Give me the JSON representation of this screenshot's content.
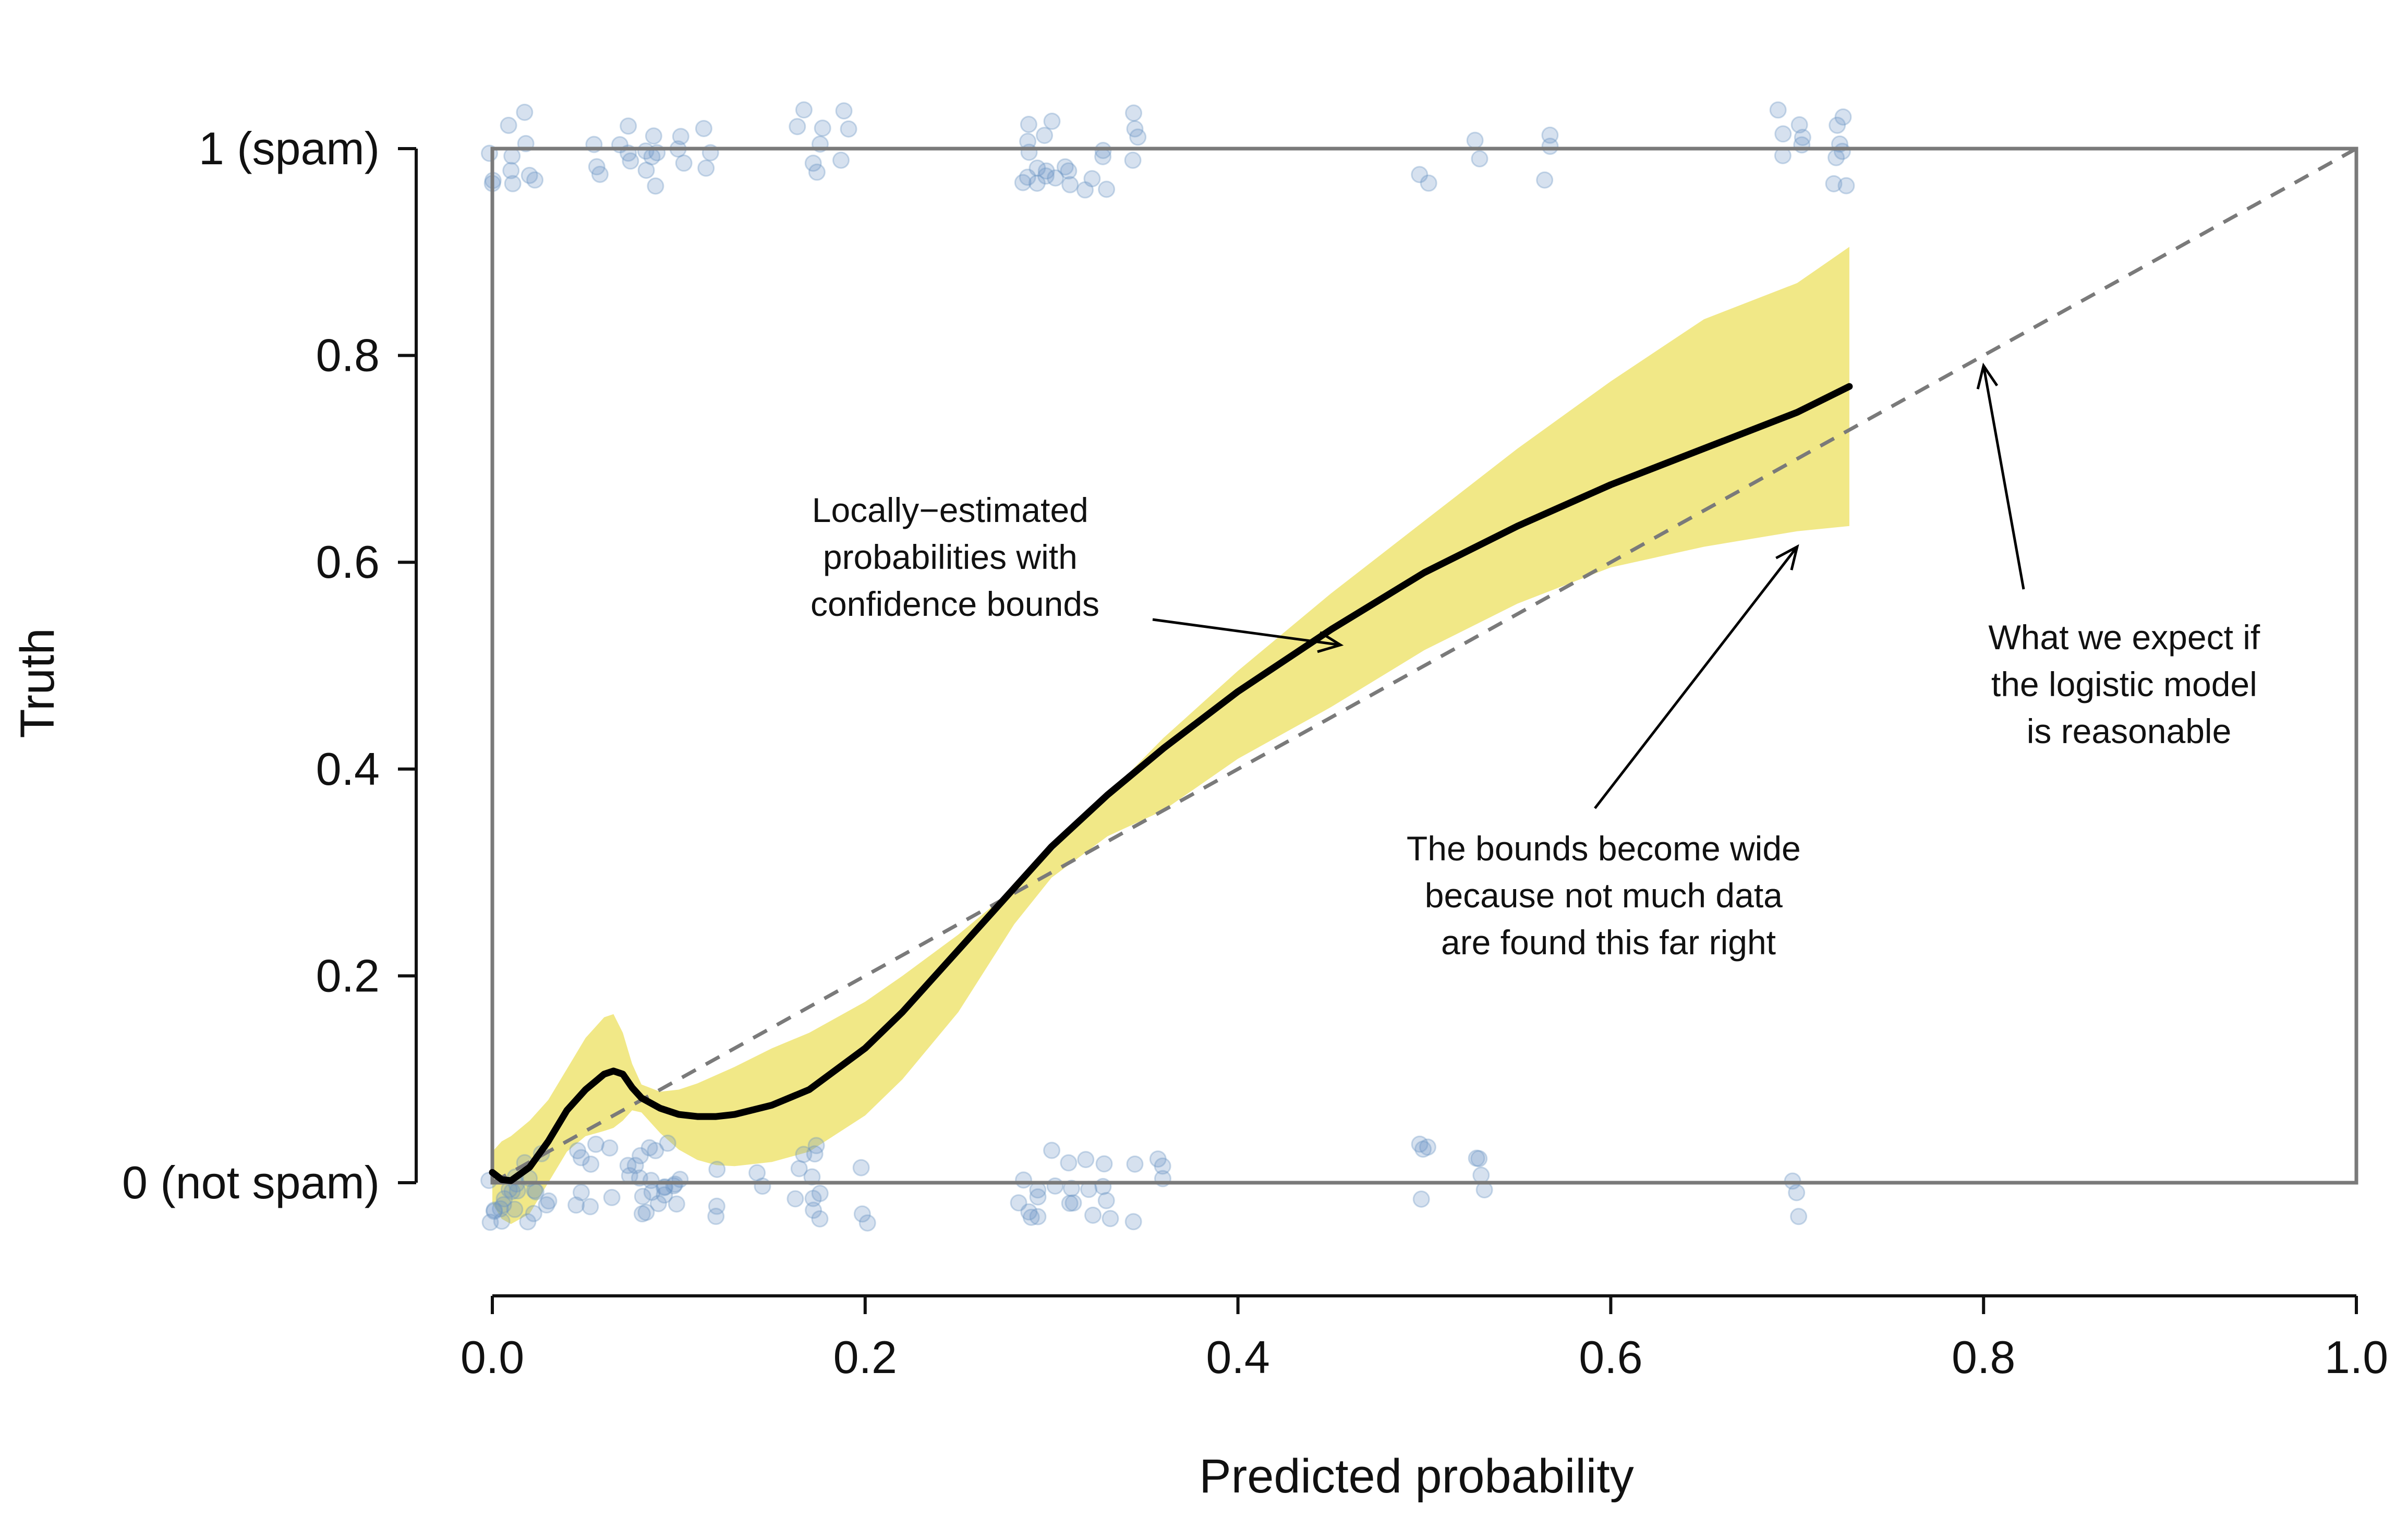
{
  "chart_data": {
    "type": "scatter",
    "title": "",
    "xlabel": "Predicted probability",
    "ylabel": "Truth",
    "xlim": [
      0,
      1
    ],
    "ylim": [
      -0.12,
      1.1
    ],
    "grid": false,
    "legend": "none",
    "x_ticks": [
      {
        "value": 0.0,
        "label": "0.0"
      },
      {
        "value": 0.2,
        "label": "0.2"
      },
      {
        "value": 0.4,
        "label": "0.4"
      },
      {
        "value": 0.6,
        "label": "0.6"
      },
      {
        "value": 0.8,
        "label": "0.8"
      },
      {
        "value": 1.0,
        "label": "1.0"
      }
    ],
    "y_ticks": [
      {
        "value": 0.0,
        "label": "0 (not spam)"
      },
      {
        "value": 0.2,
        "label": "0.2"
      },
      {
        "value": 0.4,
        "label": "0.4"
      },
      {
        "value": 0.6,
        "label": "0.6"
      },
      {
        "value": 0.8,
        "label": "0.8"
      },
      {
        "value": 1.0,
        "label": "1 (spam)"
      }
    ],
    "points_truth_1_x": [
      0.0,
      0.01,
      0.02,
      0.055,
      0.07,
      0.075,
      0.08,
      0.085,
      0.09,
      0.1,
      0.115,
      0.165,
      0.175,
      0.19,
      0.285,
      0.29,
      0.295,
      0.3,
      0.31,
      0.32,
      0.33,
      0.345,
      0.5,
      0.53,
      0.565,
      0.69,
      0.7,
      0.72,
      0.725
    ],
    "points_truth_0_x": [
      0.0,
      0.005,
      0.01,
      0.015,
      0.02,
      0.025,
      0.03,
      0.045,
      0.055,
      0.065,
      0.075,
      0.08,
      0.085,
      0.09,
      0.095,
      0.1,
      0.12,
      0.145,
      0.165,
      0.17,
      0.175,
      0.2,
      0.285,
      0.29,
      0.295,
      0.3,
      0.31,
      0.32,
      0.33,
      0.345,
      0.36,
      0.5,
      0.53,
      0.7
    ],
    "reference_line": {
      "x": [
        0,
        1
      ],
      "y": [
        0,
        1
      ]
    },
    "smooth_curve": {
      "x": [
        0.0,
        0.005,
        0.01,
        0.02,
        0.03,
        0.04,
        0.05,
        0.06,
        0.065,
        0.07,
        0.075,
        0.08,
        0.09,
        0.1,
        0.11,
        0.12,
        0.13,
        0.15,
        0.17,
        0.2,
        0.22,
        0.25,
        0.28,
        0.3,
        0.33,
        0.36,
        0.4,
        0.45,
        0.5,
        0.55,
        0.6,
        0.65,
        0.7,
        0.728
      ],
      "y": [
        0.01,
        0.003,
        0.002,
        0.015,
        0.04,
        0.07,
        0.09,
        0.105,
        0.108,
        0.105,
        0.092,
        0.082,
        0.072,
        0.066,
        0.064,
        0.064,
        0.066,
        0.075,
        0.09,
        0.13,
        0.165,
        0.225,
        0.285,
        0.325,
        0.375,
        0.42,
        0.475,
        0.535,
        0.59,
        0.635,
        0.675,
        0.71,
        0.745,
        0.77
      ]
    },
    "confidence_band": {
      "x": [
        0.0,
        0.005,
        0.01,
        0.02,
        0.03,
        0.04,
        0.05,
        0.06,
        0.065,
        0.07,
        0.075,
        0.08,
        0.09,
        0.1,
        0.11,
        0.12,
        0.13,
        0.15,
        0.17,
        0.2,
        0.22,
        0.25,
        0.28,
        0.3,
        0.33,
        0.36,
        0.4,
        0.45,
        0.5,
        0.55,
        0.6,
        0.65,
        0.7,
        0.728
      ],
      "upper": [
        0.03,
        0.04,
        0.045,
        0.06,
        0.08,
        0.11,
        0.14,
        0.16,
        0.163,
        0.145,
        0.115,
        0.095,
        0.088,
        0.09,
        0.096,
        0.104,
        0.112,
        0.13,
        0.145,
        0.175,
        0.2,
        0.24,
        0.285,
        0.32,
        0.375,
        0.43,
        0.495,
        0.57,
        0.64,
        0.71,
        0.775,
        0.835,
        0.87,
        0.905
      ],
      "lower": [
        -0.02,
        -0.035,
        -0.04,
        -0.03,
        0.0,
        0.03,
        0.045,
        0.05,
        0.053,
        0.06,
        0.07,
        0.068,
        0.048,
        0.032,
        0.022,
        0.017,
        0.016,
        0.02,
        0.03,
        0.065,
        0.1,
        0.165,
        0.25,
        0.295,
        0.335,
        0.36,
        0.41,
        0.46,
        0.515,
        0.56,
        0.595,
        0.615,
        0.63,
        0.635
      ]
    },
    "colors": {
      "points": "#6b94c4",
      "band": "#f1e887",
      "curve": "#000000",
      "reference": "#7a7a7a",
      "frame": "#7a7a7a",
      "axis": "#111111"
    },
    "annotations": [
      {
        "lines": [
          "Locally−estimated",
          "probabilities with",
          "confidence bounds"
        ],
        "points_to": [
          0.455,
          0.52
        ]
      },
      {
        "lines": [
          "The bounds become wide",
          "because not much data",
          "are found this far right"
        ],
        "points_to": [
          0.7,
          0.615
        ]
      },
      {
        "lines": [
          "What we expect if",
          "the logistic model",
          "is reasonable"
        ],
        "points_to": [
          0.8,
          0.79
        ]
      }
    ]
  }
}
